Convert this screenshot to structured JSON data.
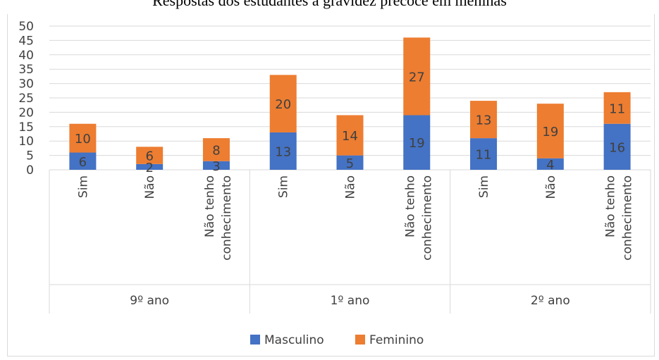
{
  "chart_data": {
    "type": "bar",
    "stacked": true,
    "title": "Respostas dos estudantes à gravidez precoce em meninas",
    "ylim": [
      0,
      50
    ],
    "yticks": [
      0,
      5,
      10,
      15,
      20,
      25,
      30,
      35,
      40,
      45,
      50
    ],
    "grid": true,
    "legend_position": "bottom",
    "groups": [
      {
        "label": "9º ano",
        "categories": [
          "Sim",
          "Não",
          "Não tenho conhecimento"
        ]
      },
      {
        "label": "1º ano",
        "categories": [
          "Sim",
          "Não",
          "Não tenho conhecimento"
        ]
      },
      {
        "label": "2º ano",
        "categories": [
          "Sim",
          "Não",
          "Não tenho conhecimento"
        ]
      }
    ],
    "categories": [
      "Sim",
      "Não",
      "Não tenho conhecimento",
      "Sim",
      "Não",
      "Não tenho conhecimento",
      "Sim",
      "Não",
      "Não tenho conhecimento"
    ],
    "series": [
      {
        "name": "Masculino",
        "color": "#4472c4",
        "values": [
          6,
          2,
          3,
          13,
          5,
          19,
          11,
          4,
          16
        ]
      },
      {
        "name": "Feminino",
        "color": "#ed7d31",
        "values": [
          10,
          6,
          8,
          20,
          14,
          27,
          13,
          19,
          11
        ]
      }
    ]
  }
}
